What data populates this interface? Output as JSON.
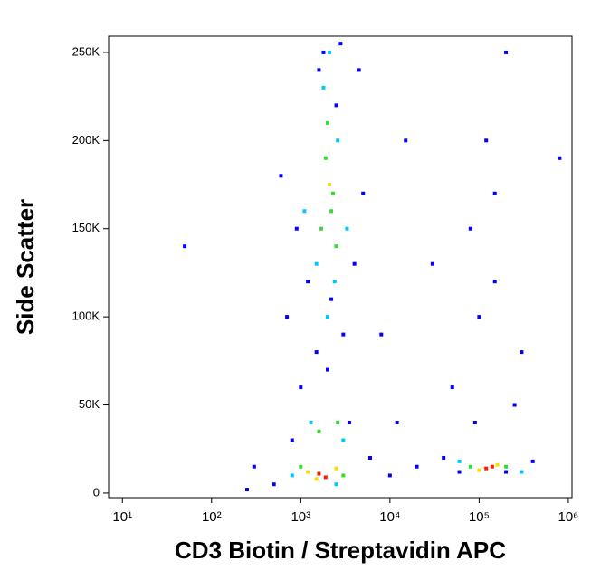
{
  "chart_data": {
    "type": "scatter",
    "xlabel": "CD3 Biotin / Streptavidin APC",
    "ylabel": "Side Scatter",
    "xscale": "log",
    "xlim": [
      7,
      1100000
    ],
    "ylim": [
      -2600,
      259200
    ],
    "xticks": [
      {
        "value": 10,
        "label": "10¹"
      },
      {
        "value": 100,
        "label": "10²"
      },
      {
        "value": 1000,
        "label": "10³"
      },
      {
        "value": 10000,
        "label": "10⁴"
      },
      {
        "value": 100000,
        "label": "10⁵"
      },
      {
        "value": 1000000,
        "label": "10⁶"
      }
    ],
    "yticks": [
      0,
      {
        "value": 50000,
        "label": "50K"
      },
      {
        "value": 100000,
        "label": "100K"
      },
      {
        "value": 150000,
        "label": "150K"
      },
      {
        "value": 200000,
        "label": "200K"
      },
      {
        "value": 250000,
        "label": "250K"
      }
    ],
    "series": [
      {
        "color": "#0000ff",
        "x": [
          300,
          500,
          800,
          1000,
          1200,
          1500,
          1800,
          2500,
          3000,
          4000,
          5000,
          600,
          900,
          3500,
          6000,
          10000,
          20000,
          40000,
          60000,
          200000,
          400000,
          80000,
          120000,
          150000,
          100000,
          300000,
          50000,
          200000,
          800000,
          50,
          250,
          2000,
          2200,
          1600,
          2800,
          4500,
          700,
          12000,
          8000,
          150000,
          90000,
          250000,
          15000,
          30000
        ],
        "y": [
          15000,
          5000,
          30000,
          60000,
          120000,
          80000,
          250000,
          220000,
          90000,
          130000,
          170000,
          180000,
          150000,
          40000,
          20000,
          10000,
          15000,
          20000,
          12000,
          12000,
          18000,
          150000,
          200000,
          120000,
          100000,
          80000,
          60000,
          250000,
          190000,
          140000,
          2000,
          70000,
          110000,
          240000,
          255000,
          240000,
          100000,
          40000,
          90000,
          170000,
          40000,
          50000,
          200000,
          130000
        ]
      },
      {
        "color": "#00c8ff",
        "x": [
          1800,
          2600,
          1500,
          2400,
          1300,
          3000,
          800,
          2500,
          60000,
          300000,
          1100,
          3300,
          2000,
          2100
        ],
        "y": [
          230000,
          200000,
          130000,
          120000,
          40000,
          30000,
          10000,
          5000,
          18000,
          12000,
          160000,
          150000,
          100000,
          250000
        ]
      },
      {
        "color": "#33dd33",
        "x": [
          1900,
          2300,
          1700,
          2500,
          2000,
          2200,
          1600,
          2600,
          1000,
          3000,
          80000,
          200000
        ],
        "y": [
          190000,
          170000,
          150000,
          140000,
          210000,
          160000,
          35000,
          40000,
          15000,
          10000,
          15000,
          15000
        ]
      },
      {
        "color": "#f5e000",
        "x": [
          2100,
          1200,
          2500,
          100000,
          160000,
          1500
        ],
        "y": [
          175000,
          12000,
          14000,
          13000,
          16000,
          8000
        ]
      },
      {
        "color": "#ff1a00",
        "x": [
          1600,
          1900,
          120000,
          140000
        ],
        "y": [
          11000,
          9000,
          14000,
          15000
        ]
      }
    ]
  }
}
